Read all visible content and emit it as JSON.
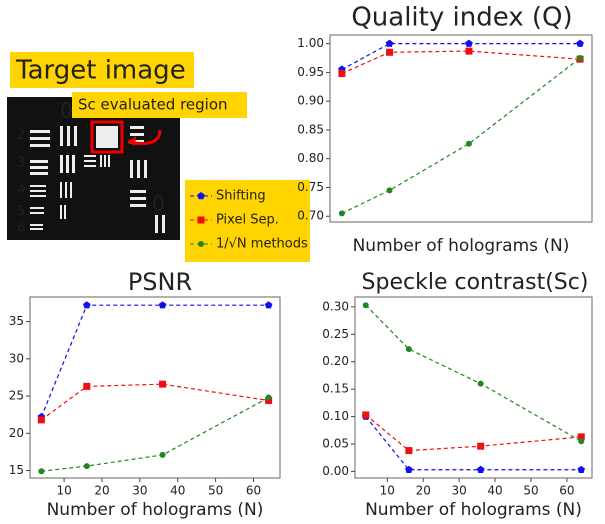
{
  "target_image": {
    "title": "Target image",
    "region_label": "Sc evaluated region",
    "labels": [
      "0",
      "2",
      "3",
      "4",
      "5",
      "6",
      "0"
    ]
  },
  "chart_data": [
    {
      "type": "line",
      "title": "Quality index (Q)",
      "x_label": "Number of holograms (N)",
      "x": [
        4,
        16,
        36,
        64
      ],
      "xlim": [
        1,
        67
      ],
      "ylim": [
        0.69,
        1.015
      ],
      "yticks": [
        {
          "value": 0.7,
          "label": "0.70"
        },
        {
          "value": 0.75,
          "label": "0.75"
        },
        {
          "value": 0.8,
          "label": "0.80"
        },
        {
          "value": 0.85,
          "label": "0.85"
        },
        {
          "value": 0.9,
          "label": "0.90"
        },
        {
          "value": 0.95,
          "label": "0.95"
        },
        {
          "value": 1.0,
          "label": "1.00"
        }
      ],
      "series": [
        {
          "name": "Shifting",
          "color": "#1010ee",
          "values": [
            0.955,
            1.0,
            1.0,
            1.0
          ]
        },
        {
          "name": "Pixel Sep.",
          "color": "#ee1010",
          "values": [
            0.948,
            0.985,
            0.987,
            0.973
          ]
        },
        {
          "name": "1/√N methods",
          "color": "#208820",
          "values": [
            0.705,
            0.745,
            0.826,
            0.975
          ]
        }
      ]
    },
    {
      "type": "line",
      "title": "PSNR",
      "x_label": "Number of holograms (N)",
      "x": [
        4,
        16,
        36,
        64
      ],
      "xlim": [
        1,
        67
      ],
      "ylim": [
        14.0,
        38.3
      ],
      "xticks": [
        10,
        20,
        30,
        40,
        50,
        60
      ],
      "yticks": [
        15,
        20,
        25,
        30,
        35
      ],
      "series": [
        {
          "color": "#1010ee",
          "values": [
            22.2,
            37.2,
            37.2,
            37.2
          ]
        },
        {
          "color": "#ee1010",
          "values": [
            21.8,
            26.3,
            26.6,
            24.4
          ]
        },
        {
          "color": "#208820",
          "values": [
            14.9,
            15.6,
            17.1,
            24.8
          ]
        }
      ]
    },
    {
      "type": "line",
      "title": "Speckle contrast(Sc)",
      "x_label": "Number of holograms (N)",
      "x": [
        4,
        16,
        36,
        64
      ],
      "xlim": [
        1,
        67
      ],
      "ylim": [
        -0.012,
        0.318
      ],
      "xticks": [
        10,
        20,
        30,
        40,
        50,
        60
      ],
      "yticks": [
        {
          "value": 0.0,
          "label": "0.00"
        },
        {
          "value": 0.05,
          "label": "0.05"
        },
        {
          "value": 0.1,
          "label": "0.10"
        },
        {
          "value": 0.15,
          "label": "0.15"
        },
        {
          "value": 0.2,
          "label": "0.20"
        },
        {
          "value": 0.25,
          "label": "0.25"
        },
        {
          "value": 0.3,
          "label": "0.30"
        }
      ],
      "series": [
        {
          "color": "#1010ee",
          "values": [
            0.1,
            0.003,
            0.003,
            0.003
          ]
        },
        {
          "color": "#ee1010",
          "values": [
            0.103,
            0.038,
            0.046,
            0.063
          ]
        },
        {
          "color": "#208820",
          "values": [
            0.303,
            0.223,
            0.16,
            0.055
          ]
        }
      ]
    }
  ]
}
